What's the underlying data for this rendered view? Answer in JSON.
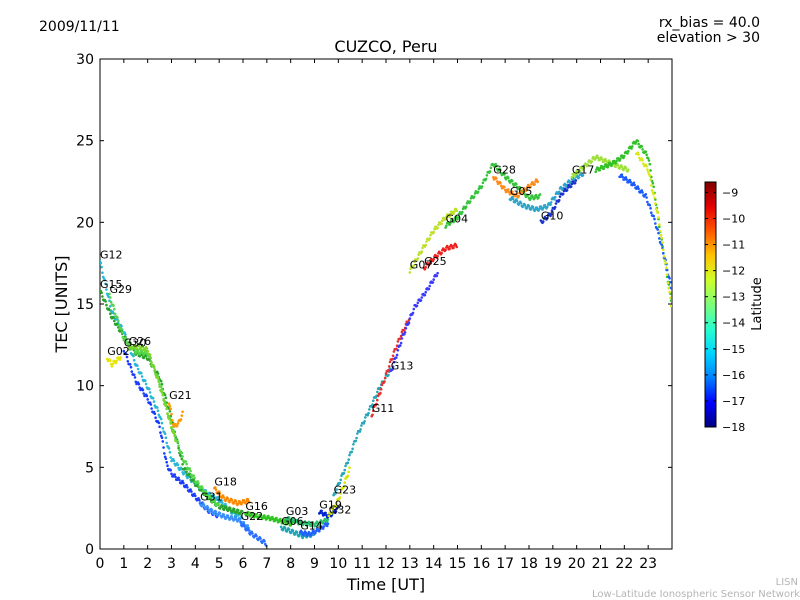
{
  "header": {
    "date": "2009/11/11",
    "bias": "rx_bias = 40.0",
    "elevation": "elevation > 30"
  },
  "credit": {
    "line1": "LISN",
    "line2": "Low-Latitude Ionospheric Sensor Network"
  },
  "chart_data": {
    "type": "scatter",
    "title": "CUZCO, Peru",
    "xlabel": "Time [UT]",
    "ylabel": "TEC [UNITS]",
    "xlim": [
      0,
      24
    ],
    "ylim": [
      0,
      30
    ],
    "x_ticks": [
      "0",
      "1",
      "2",
      "3",
      "4",
      "5",
      "6",
      "7",
      "8",
      "9",
      "10",
      "11",
      "12",
      "13",
      "14",
      "15",
      "16",
      "17",
      "18",
      "19",
      "20",
      "21",
      "22",
      "23"
    ],
    "y_ticks": [
      "0",
      "5",
      "10",
      "15",
      "20",
      "25",
      "30"
    ],
    "colorbar": {
      "label": "Latitude",
      "range": [
        -18,
        -8.6
      ],
      "ticks": [
        "-9",
        "-10",
        "-11",
        "-12",
        "-13",
        "-14",
        "-15",
        "-16",
        "-17",
        "-18"
      ],
      "colormap": [
        "#00007f",
        "#0000ff",
        "#007fff",
        "#00d4ff",
        "#29ffce",
        "#7dff7a",
        "#ceff29",
        "#ffc400",
        "#ff5800",
        "#e30000",
        "#7f0000"
      ]
    },
    "series": [
      {
        "name": "G12",
        "color": "#2ab7d6",
        "points": [
          [
            0,
            17.6
          ],
          [
            0.5,
            14.5
          ],
          [
            1,
            13.3
          ],
          [
            1.5,
            11.3
          ],
          [
            2,
            9.9
          ],
          [
            2.5,
            8.2
          ],
          [
            3,
            5.5
          ],
          [
            3.5,
            4.7
          ],
          [
            4,
            4.0
          ],
          [
            4.5,
            3.4
          ],
          [
            5,
            3.0
          ],
          [
            5.5,
            2.3
          ],
          [
            6,
            1.8
          ]
        ]
      },
      {
        "name": "G15",
        "color": "#2aa32a",
        "points": [
          [
            0,
            15.8
          ],
          [
            0.5,
            14.2
          ],
          [
            1,
            13.0
          ],
          [
            1.5,
            12.0
          ],
          [
            2,
            11.7
          ],
          [
            2.5,
            10.5
          ],
          [
            3,
            8.0
          ],
          [
            3.5,
            5.0
          ],
          [
            4,
            4.0
          ],
          [
            4.5,
            3.2
          ],
          [
            5,
            2.6
          ],
          [
            6,
            2.2
          ]
        ]
      },
      {
        "name": "G29",
        "color": "#55d64a",
        "points": [
          [
            0.4,
            15.5
          ],
          [
            0.7,
            14.2
          ],
          [
            1,
            12.9
          ],
          [
            1.5,
            12.1
          ],
          [
            2,
            12.0
          ],
          [
            2.5,
            10.2
          ],
          [
            3,
            7.5
          ],
          [
            3.5,
            5.5
          ],
          [
            4,
            4.2
          ],
          [
            4.5,
            3.3
          ],
          [
            5,
            2.6
          ]
        ]
      },
      {
        "name": "G02",
        "color": "#e6e600",
        "points": [
          [
            0.3,
            11.7
          ],
          [
            0.5,
            11.3
          ],
          [
            0.9,
            11.8
          ]
        ]
      },
      {
        "name": "G26",
        "color": "#7ed62b",
        "points": [
          [
            1.2,
            12.3
          ],
          [
            1.6,
            12.4
          ],
          [
            2,
            12.2
          ],
          [
            2.4,
            10.5
          ],
          [
            2.8,
            8.5
          ],
          [
            3.2,
            6.5
          ]
        ]
      },
      {
        "name": "G30",
        "color": "#1a3cff",
        "points": [
          [
            1,
            12.2
          ],
          [
            1.5,
            10.3
          ],
          [
            2,
            9.2
          ],
          [
            2.5,
            7.5
          ],
          [
            2.8,
            5.2
          ],
          [
            3,
            4.6
          ],
          [
            3.5,
            4.0
          ],
          [
            4,
            3.2
          ],
          [
            4.5,
            2.4
          ],
          [
            5,
            2.0
          ]
        ]
      },
      {
        "name": "G21",
        "color": "#ff9900",
        "points": [
          [
            2.9,
            9.0
          ],
          [
            3.0,
            8.2
          ],
          [
            3.1,
            7.5
          ],
          [
            3.3,
            7.7
          ],
          [
            3.5,
            8.4
          ]
        ]
      },
      {
        "name": "G18",
        "color": "#ff8800",
        "points": [
          [
            4.8,
            3.7
          ],
          [
            5.2,
            3.1
          ],
          [
            5.8,
            2.8
          ],
          [
            6.3,
            3.0
          ]
        ]
      },
      {
        "name": "G31",
        "color": "#3a8fff",
        "points": [
          [
            4.2,
            2.8
          ],
          [
            4.7,
            2.3
          ],
          [
            5.2,
            2.0
          ],
          [
            5.8,
            1.8
          ],
          [
            6.3,
            1.2
          ]
        ]
      },
      {
        "name": "G22",
        "color": "#2b6fff",
        "points": [
          [
            5.9,
            1.6
          ],
          [
            6.3,
            1.0
          ],
          [
            6.7,
            0.6
          ],
          [
            7.0,
            0.3
          ]
        ]
      },
      {
        "name": "G16",
        "color": "#2ec41f",
        "points": [
          [
            6.1,
            2.2
          ],
          [
            6.6,
            2.0
          ],
          [
            7.1,
            1.9
          ],
          [
            7.6,
            1.7
          ],
          [
            8.1,
            1.5
          ]
        ]
      },
      {
        "name": "G06",
        "color": "#1fa3b3",
        "points": [
          [
            7.6,
            1.3
          ],
          [
            8.0,
            1.1
          ],
          [
            8.5,
            0.8
          ],
          [
            9.0,
            0.9
          ]
        ]
      },
      {
        "name": "G03",
        "color": "#26c06b",
        "points": [
          [
            7.8,
            1.9
          ],
          [
            8.4,
            1.6
          ],
          [
            9.0,
            1.5
          ],
          [
            9.6,
            1.8
          ]
        ]
      },
      {
        "name": "G14",
        "color": "#2060ff",
        "points": [
          [
            8.4,
            1.0
          ],
          [
            8.8,
            0.9
          ],
          [
            9.2,
            1.2
          ],
          [
            9.6,
            1.6
          ]
        ]
      },
      {
        "name": "G19",
        "color": "#0022cc",
        "points": [
          [
            9.2,
            2.3
          ],
          [
            9.6,
            2.0
          ],
          [
            10.0,
            2.5
          ]
        ]
      },
      {
        "name": "G32",
        "color": "#d8e600",
        "points": [
          [
            9.6,
            2.0
          ],
          [
            10.0,
            3.0
          ],
          [
            10.5,
            5.0
          ]
        ]
      },
      {
        "name": "G23",
        "color": "#26a6b8",
        "points": [
          [
            9.8,
            3.2
          ],
          [
            10.3,
            5.0
          ],
          [
            10.8,
            7.0
          ],
          [
            11.3,
            8.5
          ],
          [
            11.7,
            9.8
          ],
          [
            12.2,
            11.0
          ]
        ]
      },
      {
        "name": "G11",
        "color": "#e63030",
        "points": [
          [
            11.4,
            8.2
          ],
          [
            11.8,
            9.8
          ],
          [
            12.2,
            11.5
          ],
          [
            12.6,
            13.0
          ],
          [
            13.0,
            14.2
          ]
        ]
      },
      {
        "name": "G13",
        "color": "#3a3aff",
        "points": [
          [
            12.2,
            10.8
          ],
          [
            12.7,
            13.0
          ],
          [
            13.2,
            14.8
          ],
          [
            13.7,
            15.8
          ],
          [
            14.2,
            17.0
          ]
        ]
      },
      {
        "name": "G25",
        "color": "#ee2020",
        "points": [
          [
            13.6,
            17.2
          ],
          [
            14.0,
            17.8
          ],
          [
            14.5,
            18.4
          ],
          [
            15.0,
            18.6
          ]
        ]
      },
      {
        "name": "G07",
        "color": "#bde02a",
        "points": [
          [
            13.0,
            17.0
          ],
          [
            13.5,
            18.3
          ],
          [
            14.0,
            19.5
          ],
          [
            14.5,
            20.3
          ],
          [
            15.0,
            20.8
          ]
        ]
      },
      {
        "name": "G04",
        "color": "#36c23a",
        "points": [
          [
            14.5,
            19.8
          ],
          [
            15.0,
            20.3
          ],
          [
            15.5,
            21.3
          ],
          [
            16.0,
            22.2
          ],
          [
            16.5,
            23.6
          ],
          [
            17.0,
            22.8
          ],
          [
            17.5,
            22.2
          ],
          [
            18.0,
            21.5
          ],
          [
            18.5,
            21.6
          ]
        ]
      },
      {
        "name": "G28",
        "color": "#ff8c1a",
        "points": [
          [
            16.5,
            22.8
          ],
          [
            17.0,
            22.0
          ],
          [
            17.5,
            21.6
          ],
          [
            18.0,
            22.2
          ],
          [
            18.4,
            22.6
          ]
        ]
      },
      {
        "name": "G05",
        "color": "#2ea4c8",
        "points": [
          [
            17.2,
            21.5
          ],
          [
            17.8,
            21.0
          ],
          [
            18.3,
            20.8
          ],
          [
            18.8,
            21.0
          ],
          [
            19.3,
            22.0
          ],
          [
            19.8,
            22.6
          ],
          [
            20.3,
            23.0
          ]
        ]
      },
      {
        "name": "G10",
        "color": "#1a34cc",
        "points": [
          [
            18.5,
            20.0
          ],
          [
            18.9,
            20.5
          ],
          [
            19.4,
            21.8
          ],
          [
            20.0,
            22.6
          ]
        ]
      },
      {
        "name": "G17",
        "color": "#9ee03a",
        "points": [
          [
            19.8,
            22.8
          ],
          [
            20.3,
            23.4
          ],
          [
            20.8,
            24.0
          ],
          [
            21.3,
            23.7
          ],
          [
            21.8,
            23.4
          ],
          [
            22.2,
            23.2
          ]
        ]
      },
      {
        "name": "",
        "color": "#32c028",
        "points": [
          [
            20.8,
            23.2
          ],
          [
            21.5,
            23.6
          ],
          [
            22.0,
            24.1
          ],
          [
            22.5,
            25.0
          ],
          [
            23.0,
            24.0
          ],
          [
            23.3,
            21.5
          ],
          [
            23.6,
            18.5
          ],
          [
            24.0,
            15.0
          ]
        ]
      },
      {
        "name": "",
        "color": "#1a5aff",
        "points": [
          [
            21.8,
            22.9
          ],
          [
            22.4,
            22.3
          ],
          [
            22.9,
            21.6
          ],
          [
            23.3,
            20.0
          ],
          [
            23.7,
            17.8
          ],
          [
            24.0,
            15.8
          ]
        ]
      },
      {
        "name": "",
        "color": "#d8e81a",
        "points": [
          [
            22.5,
            24.3
          ],
          [
            23.0,
            23.2
          ],
          [
            23.4,
            20.5
          ],
          [
            23.8,
            16.8
          ],
          [
            24.0,
            14.5
          ]
        ]
      }
    ]
  }
}
